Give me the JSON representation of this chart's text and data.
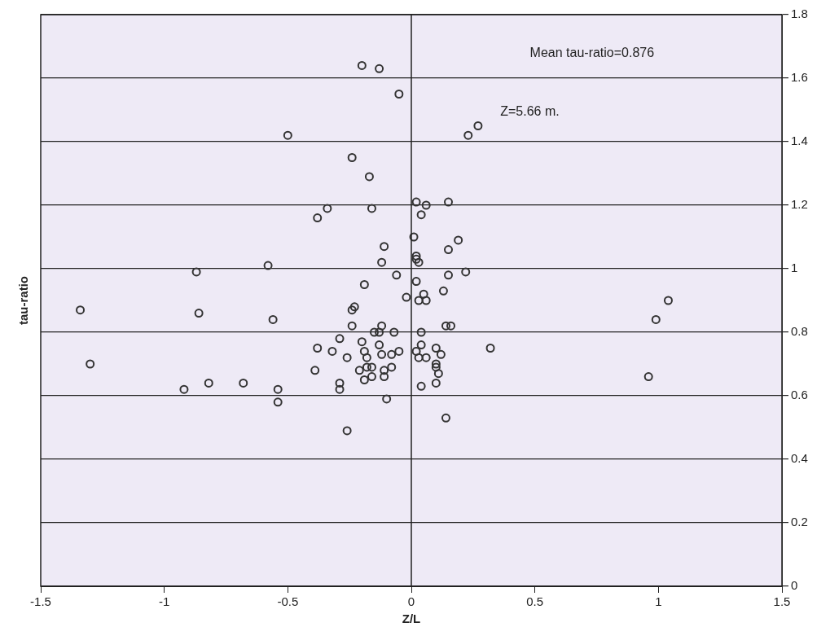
{
  "chart_data": {
    "type": "scatter",
    "xlabel": "Z/L",
    "ylabel": "tau-ratio",
    "xlim": [
      -1.5,
      1.5
    ],
    "xticks": [
      -1.5,
      -1,
      -0.5,
      0,
      0.5,
      1,
      1.5
    ],
    "ylim": [
      0,
      1.8
    ],
    "yticks": [
      0,
      0.2,
      0.4,
      0.6,
      0.8,
      1,
      1.2,
      1.4,
      1.6,
      1.8
    ],
    "grid": "y",
    "marker": "circle",
    "legend": false,
    "ref_lines": [
      {
        "axis": "x",
        "value": 0
      }
    ],
    "annotations": [
      "Mean tau-ratio=0.876",
      "Z=5.66 m."
    ],
    "series": [
      {
        "color": "#333333",
        "x": [
          -0.2,
          -0.13,
          -0.05,
          -0.5,
          0.27,
          0.23,
          -0.24,
          -0.17,
          -0.34,
          -0.38,
          -0.16,
          0.02,
          0.06,
          0.04,
          0.15,
          0.01,
          0.19,
          -0.11,
          0.15,
          0.02,
          0.02,
          0.03,
          -0.12,
          -0.06,
          0.15,
          0.22,
          -0.19,
          0.02,
          0.13,
          -0.02,
          0.03,
          0.05,
          0.06,
          -0.23,
          -0.24,
          -0.24,
          -0.12,
          -0.15,
          -0.13,
          -0.07,
          0.04,
          0.14,
          0.16,
          -0.29,
          -0.2,
          -0.38,
          -0.32,
          -0.26,
          -0.19,
          -0.18,
          -0.13,
          -0.12,
          -0.08,
          -0.05,
          0.02,
          0.04,
          0.03,
          0.06,
          0.1,
          0.12,
          0.32,
          -0.39,
          -0.21,
          -0.18,
          -0.16,
          -0.19,
          -0.16,
          -0.11,
          -0.11,
          -0.08,
          0.1,
          0.1,
          0.11,
          -0.29,
          -0.29,
          0.04,
          0.1,
          -0.1,
          0.14,
          -0.26,
          -0.58,
          -0.87,
          -1.34,
          -0.86,
          -0.56,
          -1.3,
          -0.92,
          -0.82,
          -0.68,
          -0.54,
          -0.54,
          1.04,
          0.99,
          0.96
        ],
        "values": [
          1.64,
          1.63,
          1.55,
          1.42,
          1.45,
          1.42,
          1.35,
          1.29,
          1.19,
          1.16,
          1.19,
          1.21,
          1.2,
          1.17,
          1.21,
          1.1,
          1.09,
          1.07,
          1.06,
          1.04,
          1.03,
          1.02,
          1.02,
          0.98,
          0.98,
          0.99,
          0.95,
          0.96,
          0.93,
          0.91,
          0.9,
          0.92,
          0.9,
          0.88,
          0.87,
          0.82,
          0.82,
          0.8,
          0.8,
          0.8,
          0.8,
          0.82,
          0.82,
          0.78,
          0.77,
          0.75,
          0.74,
          0.72,
          0.74,
          0.72,
          0.76,
          0.73,
          0.73,
          0.74,
          0.74,
          0.76,
          0.72,
          0.72,
          0.75,
          0.73,
          0.75,
          0.68,
          0.68,
          0.69,
          0.69,
          0.65,
          0.66,
          0.68,
          0.66,
          0.69,
          0.7,
          0.69,
          0.67,
          0.64,
          0.62,
          0.63,
          0.64,
          0.59,
          0.53,
          0.49,
          1.01,
          0.99,
          0.87,
          0.86,
          0.84,
          0.7,
          0.62,
          0.64,
          0.64,
          0.62,
          0.58,
          0.9,
          0.84,
          0.66
        ]
      }
    ]
  }
}
